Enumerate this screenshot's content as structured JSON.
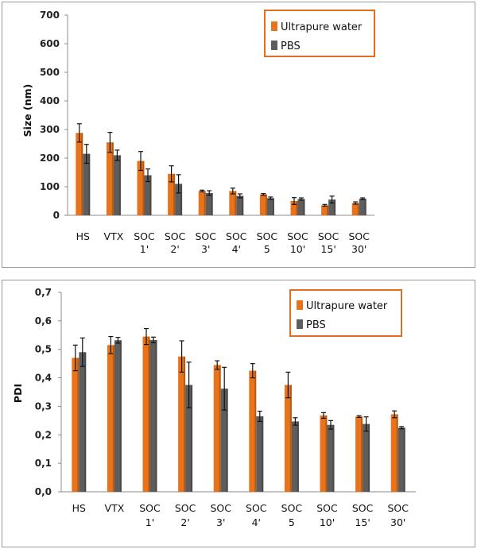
{
  "colors": {
    "water": "#e8731a",
    "pbs": "#5d5d5d",
    "frame": "#9a9a9a",
    "legend_border": "#e07020"
  },
  "chart_data": [
    {
      "type": "bar",
      "ylabel": "Size (nm)",
      "ylim": [
        0,
        700
      ],
      "yticks": [
        "0",
        "100",
        "200",
        "300",
        "400",
        "500",
        "600",
        "700"
      ],
      "ytick_values": [
        0,
        100,
        200,
        300,
        400,
        500,
        600,
        700
      ],
      "categories": [
        [
          "HS"
        ],
        [
          "VTX"
        ],
        [
          "SOC",
          "1'"
        ],
        [
          "SOC",
          "2'"
        ],
        [
          "SOC",
          "3'"
        ],
        [
          "SOC",
          "4'"
        ],
        [
          "SOC",
          "5"
        ],
        [
          "SOC",
          "10'"
        ],
        [
          "SOC",
          "15'"
        ],
        [
          "SOC",
          "30'"
        ]
      ],
      "legend": "top-right",
      "series": [
        {
          "name": "Ultrapure water",
          "values": [
            288,
            255,
            190,
            145,
            85,
            85,
            73,
            50,
            35,
            43
          ],
          "errors": [
            32,
            35,
            33,
            28,
            3,
            10,
            3,
            12,
            3,
            4
          ]
        },
        {
          "name": "PBS",
          "values": [
            215,
            210,
            140,
            110,
            78,
            68,
            60,
            57,
            55,
            58
          ],
          "errors": [
            33,
            18,
            22,
            32,
            8,
            7,
            4,
            4,
            12,
            3
          ]
        }
      ]
    },
    {
      "type": "bar",
      "ylabel": "PDI",
      "ylim": [
        0,
        0.7
      ],
      "yticks": [
        "0,0",
        "0,1",
        "0,2",
        "0,3",
        "0,4",
        "0,5",
        "0,6",
        "0,7"
      ],
      "ytick_values": [
        0,
        0.1,
        0.2,
        0.3,
        0.4,
        0.5,
        0.6,
        0.7
      ],
      "categories": [
        [
          "HS"
        ],
        [
          "VTX"
        ],
        [
          "SOC",
          "1'"
        ],
        [
          "SOC",
          "2'"
        ],
        [
          "SOC",
          "3'"
        ],
        [
          "SOC",
          "4'"
        ],
        [
          "SOC",
          "5"
        ],
        [
          "SOC",
          "10'"
        ],
        [
          "SOC",
          "15'"
        ],
        [
          "SOC",
          "30'"
        ]
      ],
      "legend": "top-right",
      "series": [
        {
          "name": "Ultrapure water",
          "values": [
            0.47,
            0.515,
            0.545,
            0.475,
            0.445,
            0.425,
            0.375,
            0.268,
            0.264,
            0.272
          ],
          "errors": [
            0.045,
            0.03,
            0.028,
            0.055,
            0.015,
            0.025,
            0.045,
            0.01,
            0.003,
            0.012
          ]
        },
        {
          "name": "PBS",
          "values": [
            0.49,
            0.532,
            0.533,
            0.375,
            0.362,
            0.265,
            0.247,
            0.235,
            0.238,
            0.225
          ],
          "errors": [
            0.05,
            0.01,
            0.01,
            0.08,
            0.075,
            0.018,
            0.013,
            0.015,
            0.025,
            0.004
          ]
        }
      ]
    }
  ]
}
